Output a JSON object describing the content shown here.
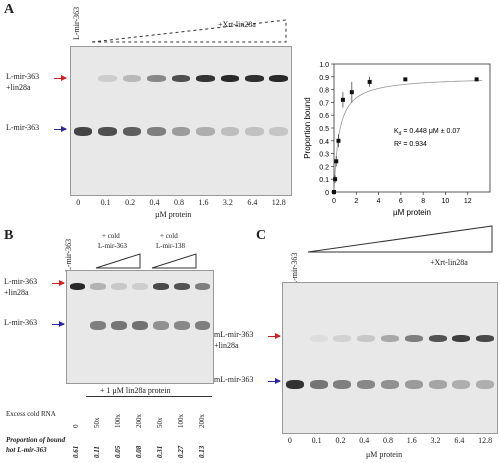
{
  "panel_a": {
    "letter": "A",
    "lane_header": "L-mir-363",
    "treatment_label": "+Xrt-lin28a",
    "band_labels": {
      "complex_line1": "L-mir-363",
      "complex_line2": "+lin28a",
      "free": "L-mir-363"
    },
    "lane_values": [
      "0",
      "0.1",
      "0.2",
      "0.4",
      "0.8",
      "1.6",
      "3.2",
      "6.4",
      "12.8"
    ],
    "xlabel": "µM protein",
    "bound_intensity": [
      0.0,
      0.12,
      0.22,
      0.45,
      0.72,
      0.85,
      0.9,
      0.88,
      0.9
    ],
    "free_intensity": [
      0.85,
      0.8,
      0.72,
      0.55,
      0.4,
      0.3,
      0.22,
      0.2,
      0.18
    ]
  },
  "chart_data": {
    "type": "scatter",
    "xlabel": "µM protein",
    "ylabel": "Proportion bound",
    "xlim": [
      0,
      14
    ],
    "ylim": [
      0,
      1.0
    ],
    "xticks": [
      "0",
      "2",
      "4",
      "6",
      "8",
      "10",
      "12"
    ],
    "yticks": [
      "0",
      "0.1",
      "0.2",
      "0.3",
      "0.4",
      "0.5",
      "0.6",
      "0.7",
      "0.8",
      "0.9",
      "1.0"
    ],
    "points": [
      [
        0,
        0.0
      ],
      [
        0.1,
        0.1
      ],
      [
        0.2,
        0.24
      ],
      [
        0.4,
        0.4
      ],
      [
        0.8,
        0.72
      ],
      [
        1.6,
        0.78
      ],
      [
        3.2,
        0.86
      ],
      [
        6.4,
        0.88
      ],
      [
        12.8,
        0.88
      ]
    ],
    "errors": [
      0.02,
      0.03,
      0.04,
      0.05,
      0.06,
      0.08,
      0.04,
      0.01,
      0.01
    ],
    "kd_line": "K",
    "kd_sub": "d",
    "kd_value": " = 0.448 μM ± 0.07",
    "r2": "R² = 0.934",
    "grid": false
  },
  "panel_b": {
    "letter": "B",
    "lane_header": "L-mir-363",
    "cold1_line1": "+ cold",
    "cold1_line2": "L-mir-363",
    "cold2_line1": "+ cold",
    "cold2_line2": "L-mir-138",
    "band_labels": {
      "complex_line1": "L-mir-363",
      "complex_line2": "+lin28a",
      "free": "L-mir-363"
    },
    "protein_label": "+ 1 μM lin28a protein",
    "excess_label": "Excess cold RNA",
    "excess_values": [
      "0",
      "50x",
      "100x",
      "200x",
      "50x",
      "100x",
      "200x"
    ],
    "proportion_label_line1": "Proportion of bound",
    "proportion_label_line2": "hot L-mir-363",
    "proportion_values": [
      "0.61",
      "0.11",
      "0.05",
      "0.08",
      "0.31",
      "0.27",
      "0.13"
    ],
    "bound_intensity": [
      0.9,
      0.25,
      0.15,
      0.12,
      0.75,
      0.7,
      0.5
    ],
    "free_intensity": [
      0.0,
      0.55,
      0.6,
      0.62,
      0.45,
      0.5,
      0.55
    ]
  },
  "panel_c": {
    "letter": "C",
    "lane_header": "mL-mir-363",
    "treatment_label": "+Xrt-lin28a",
    "band_labels": {
      "complex_line1": "mL-mir-363",
      "complex_line2": "+lin28a",
      "free": "mL-mir-363"
    },
    "lane_values": [
      "0",
      "0.1",
      "0.2",
      "0.4",
      "0.8",
      "1.6",
      "3.2",
      "6.4",
      "12.8"
    ],
    "xlabel": "μM protein",
    "bound_intensity": [
      0.0,
      0.05,
      0.1,
      0.15,
      0.3,
      0.5,
      0.7,
      0.8,
      0.75
    ],
    "free_intensity": [
      0.95,
      0.6,
      0.55,
      0.5,
      0.45,
      0.4,
      0.35,
      0.3,
      0.3
    ]
  }
}
